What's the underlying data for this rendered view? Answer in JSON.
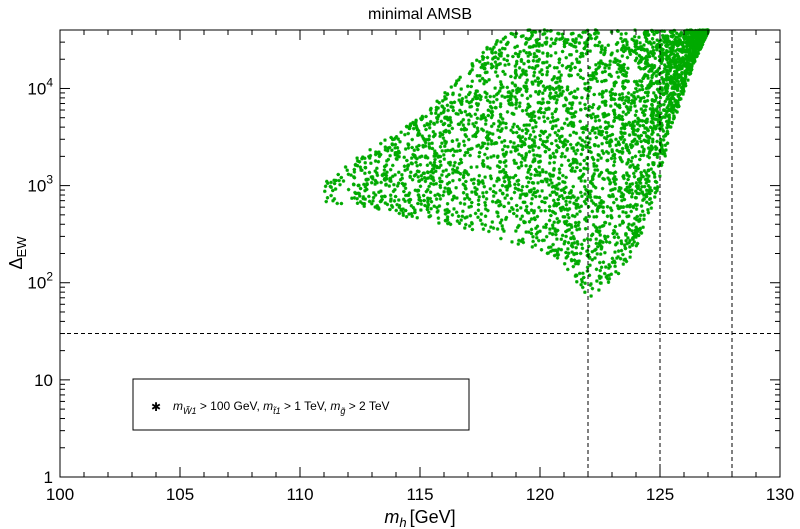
{
  "chart_data": {
    "type": "scatter",
    "title": "minimal AMSB",
    "xlabel": "m_h [GeV]",
    "xlabel_parts": {
      "var": "m",
      "sub": "h",
      "unit": "[GeV]"
    },
    "ylabel": "Δ_EW",
    "ylabel_parts": {
      "main": "Δ",
      "sub": "EW"
    },
    "xlim": [
      100,
      130
    ],
    "ylim": [
      1,
      40000
    ],
    "yscale": "log",
    "x_ticks": [
      100,
      105,
      110,
      115,
      120,
      125,
      130
    ],
    "x_tick_labels": [
      "100",
      "105",
      "110",
      "115",
      "120",
      "125",
      "130"
    ],
    "y_ticks": [
      1,
      10,
      100,
      1000,
      10000
    ],
    "y_tick_labels": [
      {
        "base": "1",
        "exp": ""
      },
      {
        "base": "10",
        "exp": ""
      },
      {
        "base": "10",
        "exp": "2"
      },
      {
        "base": "10",
        "exp": "3"
      },
      {
        "base": "10",
        "exp": "4"
      }
    ],
    "reference_lines": {
      "vertical": [
        122,
        125,
        128
      ],
      "horizontal": [
        30
      ]
    },
    "series": [
      {
        "name": "m_W1 > 100 GeV, m_t1 > 1 TeV, m_g > 2 TeV",
        "marker": "star",
        "color": "#00aa00",
        "envelope": [
          {
            "x": 111,
            "y_min": 680,
            "y_max": 1100
          },
          {
            "x": 113,
            "y_min": 550,
            "y_max": 2500
          },
          {
            "x": 115,
            "y_min": 450,
            "y_max": 5000
          },
          {
            "x": 116.5,
            "y_min": 380,
            "y_max": 12000
          },
          {
            "x": 118,
            "y_min": 300,
            "y_max": 30000
          },
          {
            "x": 119,
            "y_min": 250,
            "y_max": 40000
          },
          {
            "x": 120,
            "y_min": 220,
            "y_max": 40000
          },
          {
            "x": 121,
            "y_min": 150,
            "y_max": 40000
          },
          {
            "x": 122,
            "y_min": 65,
            "y_max": 40000
          },
          {
            "x": 123,
            "y_min": 100,
            "y_max": 40000
          },
          {
            "x": 124,
            "y_min": 220,
            "y_max": 40000
          },
          {
            "x": 124.8,
            "y_min": 700,
            "y_max": 40000
          },
          {
            "x": 125.5,
            "y_min": 4000,
            "y_max": 40000
          },
          {
            "x": 126.5,
            "y_min": 20000,
            "y_max": 40000
          },
          {
            "x": 127,
            "y_min": 38000,
            "y_max": 40000
          }
        ]
      }
    ],
    "legend": {
      "placement": "lower-left",
      "label_parts": [
        {
          "var": "m",
          "sub": "W̃1",
          "text": " > 100 GeV, "
        },
        {
          "var": "m",
          "sub": "t̃1",
          "text": " > 1 TeV, "
        },
        {
          "var": "m",
          "sub": "g̃",
          "text": " > 2 TeV"
        }
      ]
    }
  }
}
